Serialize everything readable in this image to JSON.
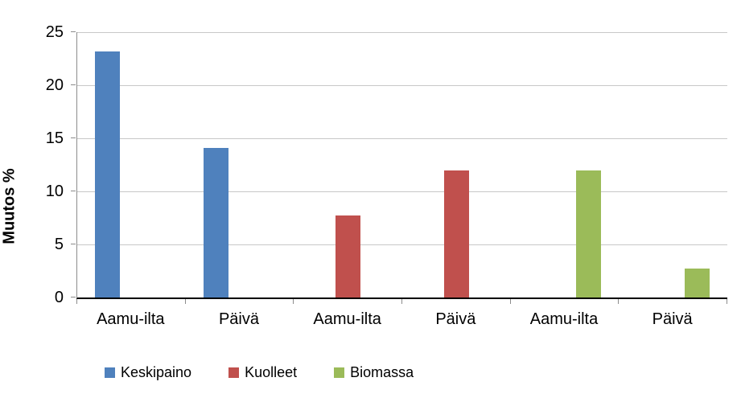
{
  "chart_data": {
    "type": "bar",
    "title": "",
    "ylabel": "Muutos %",
    "xlabel": "",
    "ylim": [
      0,
      25
    ],
    "yticks": [
      0,
      5,
      10,
      15,
      20,
      25
    ],
    "grid": true,
    "legend_position": "bottom",
    "categories": [
      "Aamu-ilta",
      "Päivä",
      "Aamu-ilta",
      "Päivä",
      "Aamu-ilta",
      "Päivä"
    ],
    "series": [
      {
        "name": "Keskipaino",
        "color": "#4f81bd",
        "values": [
          23.2,
          14.1,
          null,
          null,
          null,
          null
        ]
      },
      {
        "name": "Kuolleet",
        "color": "#c0504d",
        "values": [
          null,
          null,
          7.7,
          12.0,
          null,
          null
        ]
      },
      {
        "name": "Biomassa",
        "color": "#9bbb59",
        "values": [
          null,
          null,
          null,
          null,
          12.0,
          2.7
        ]
      }
    ]
  }
}
